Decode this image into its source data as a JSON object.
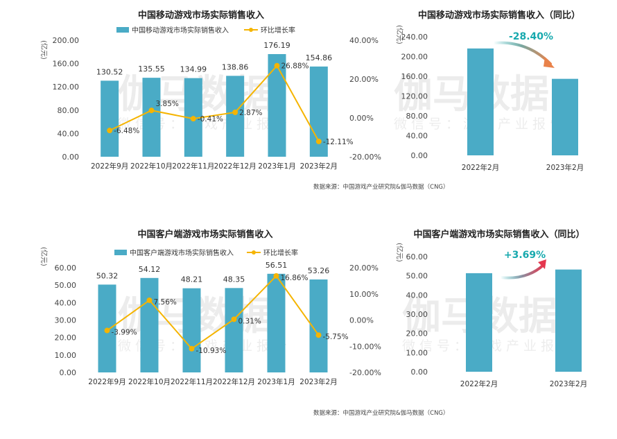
{
  "colors": {
    "bar": "#4AABC6",
    "line": "#F5B400",
    "down": "#17A9AE",
    "up": "#E5364E"
  },
  "watermark": {
    "brand": "伽马数据",
    "sub": "微信号：游戏产业报告"
  },
  "chart_data": [
    {
      "type": "bar+line",
      "title": "中国移动游戏市场实际销售收入",
      "unit": "(亿元)",
      "categories": [
        "2022年9月",
        "2022年10月",
        "2022年11月",
        "2022年12月",
        "2023年1月",
        "2023年2月"
      ],
      "series": [
        {
          "name": "中国移动游戏市场实际销售收入",
          "type": "bar",
          "axis": "left",
          "values": [
            130.52,
            135.55,
            134.99,
            138.86,
            176.19,
            154.86
          ],
          "labels": [
            "130.52",
            "135.55",
            "134.99",
            "138.86",
            "176.19",
            "154.86"
          ]
        },
        {
          "name": "环比增长率",
          "type": "line",
          "axis": "right",
          "values": [
            -6.48,
            3.85,
            -0.41,
            2.87,
            26.88,
            -12.11
          ],
          "labels": [
            "-6.48%",
            "3.85%",
            "-0.41%",
            "2.87%",
            "26.88%",
            "-12.11%"
          ]
        }
      ],
      "ylim": [
        0,
        200
      ],
      "yticks": [
        "0.00",
        "40.00",
        "80.00",
        "120.00",
        "160.00",
        "200.00"
      ],
      "y2lim": [
        -20,
        40
      ],
      "y2ticks": [
        "-20.00%",
        "0.00%",
        "20.00%",
        "40.00%"
      ],
      "source": "数据来源：中国游戏产业研究院&伽马数据（CNG）"
    },
    {
      "type": "bar",
      "title": "中国移动游戏市场实际销售收入（同比）",
      "unit": "(亿元)",
      "categories": [
        "2022年2月",
        "2023年2月"
      ],
      "values": [
        216.3,
        154.86
      ],
      "change": "-28.40%",
      "ylim": [
        0,
        240
      ],
      "yticks": [
        "0.00",
        "40.00",
        "80.00",
        "120.00",
        "160.00",
        "200.00",
        "240.00"
      ]
    },
    {
      "type": "bar+line",
      "title": "中国客户端游戏市场实际销售收入",
      "unit": "(亿元)",
      "categories": [
        "2022年9月",
        "2022年10月",
        "2022年11月",
        "2022年12月",
        "2023年1月",
        "2023年2月"
      ],
      "series": [
        {
          "name": "中国客户端游戏市场实际销售收入",
          "type": "bar",
          "axis": "left",
          "values": [
            50.32,
            54.12,
            48.21,
            48.35,
            56.51,
            53.26
          ],
          "labels": [
            "50.32",
            "54.12",
            "48.21",
            "48.35",
            "56.51",
            "53.26"
          ]
        },
        {
          "name": "环比增长率",
          "type": "line",
          "axis": "right",
          "values": [
            -3.99,
            7.56,
            -10.93,
            0.31,
            16.86,
            -5.75
          ],
          "labels": [
            "-3.99%",
            "7.56%",
            "-10.93%",
            "0.31%",
            "16.86%",
            "-5.75%"
          ]
        }
      ],
      "ylim": [
        0,
        60
      ],
      "yticks": [
        "0.00",
        "10.00",
        "20.00",
        "30.00",
        "40.00",
        "50.00",
        "60.00"
      ],
      "y2lim": [
        -20,
        20
      ],
      "y2ticks": [
        "-20.00%",
        "-10.00%",
        "0.00%",
        "10.00%",
        "20.00%"
      ],
      "source": "数据来源：中国游戏产业研究院&伽马数据（CNG）"
    },
    {
      "type": "bar",
      "title": "中国客户端游戏市场实际销售收入（同比）",
      "unit": "(亿元)",
      "categories": [
        "2022年2月",
        "2023年2月"
      ],
      "values": [
        51.36,
        53.26
      ],
      "change": "+3.69%",
      "ylim": [
        0,
        60
      ],
      "yticks": [
        "0.00",
        "10.00",
        "20.00",
        "30.00",
        "40.00",
        "50.00",
        "60.00"
      ]
    }
  ]
}
